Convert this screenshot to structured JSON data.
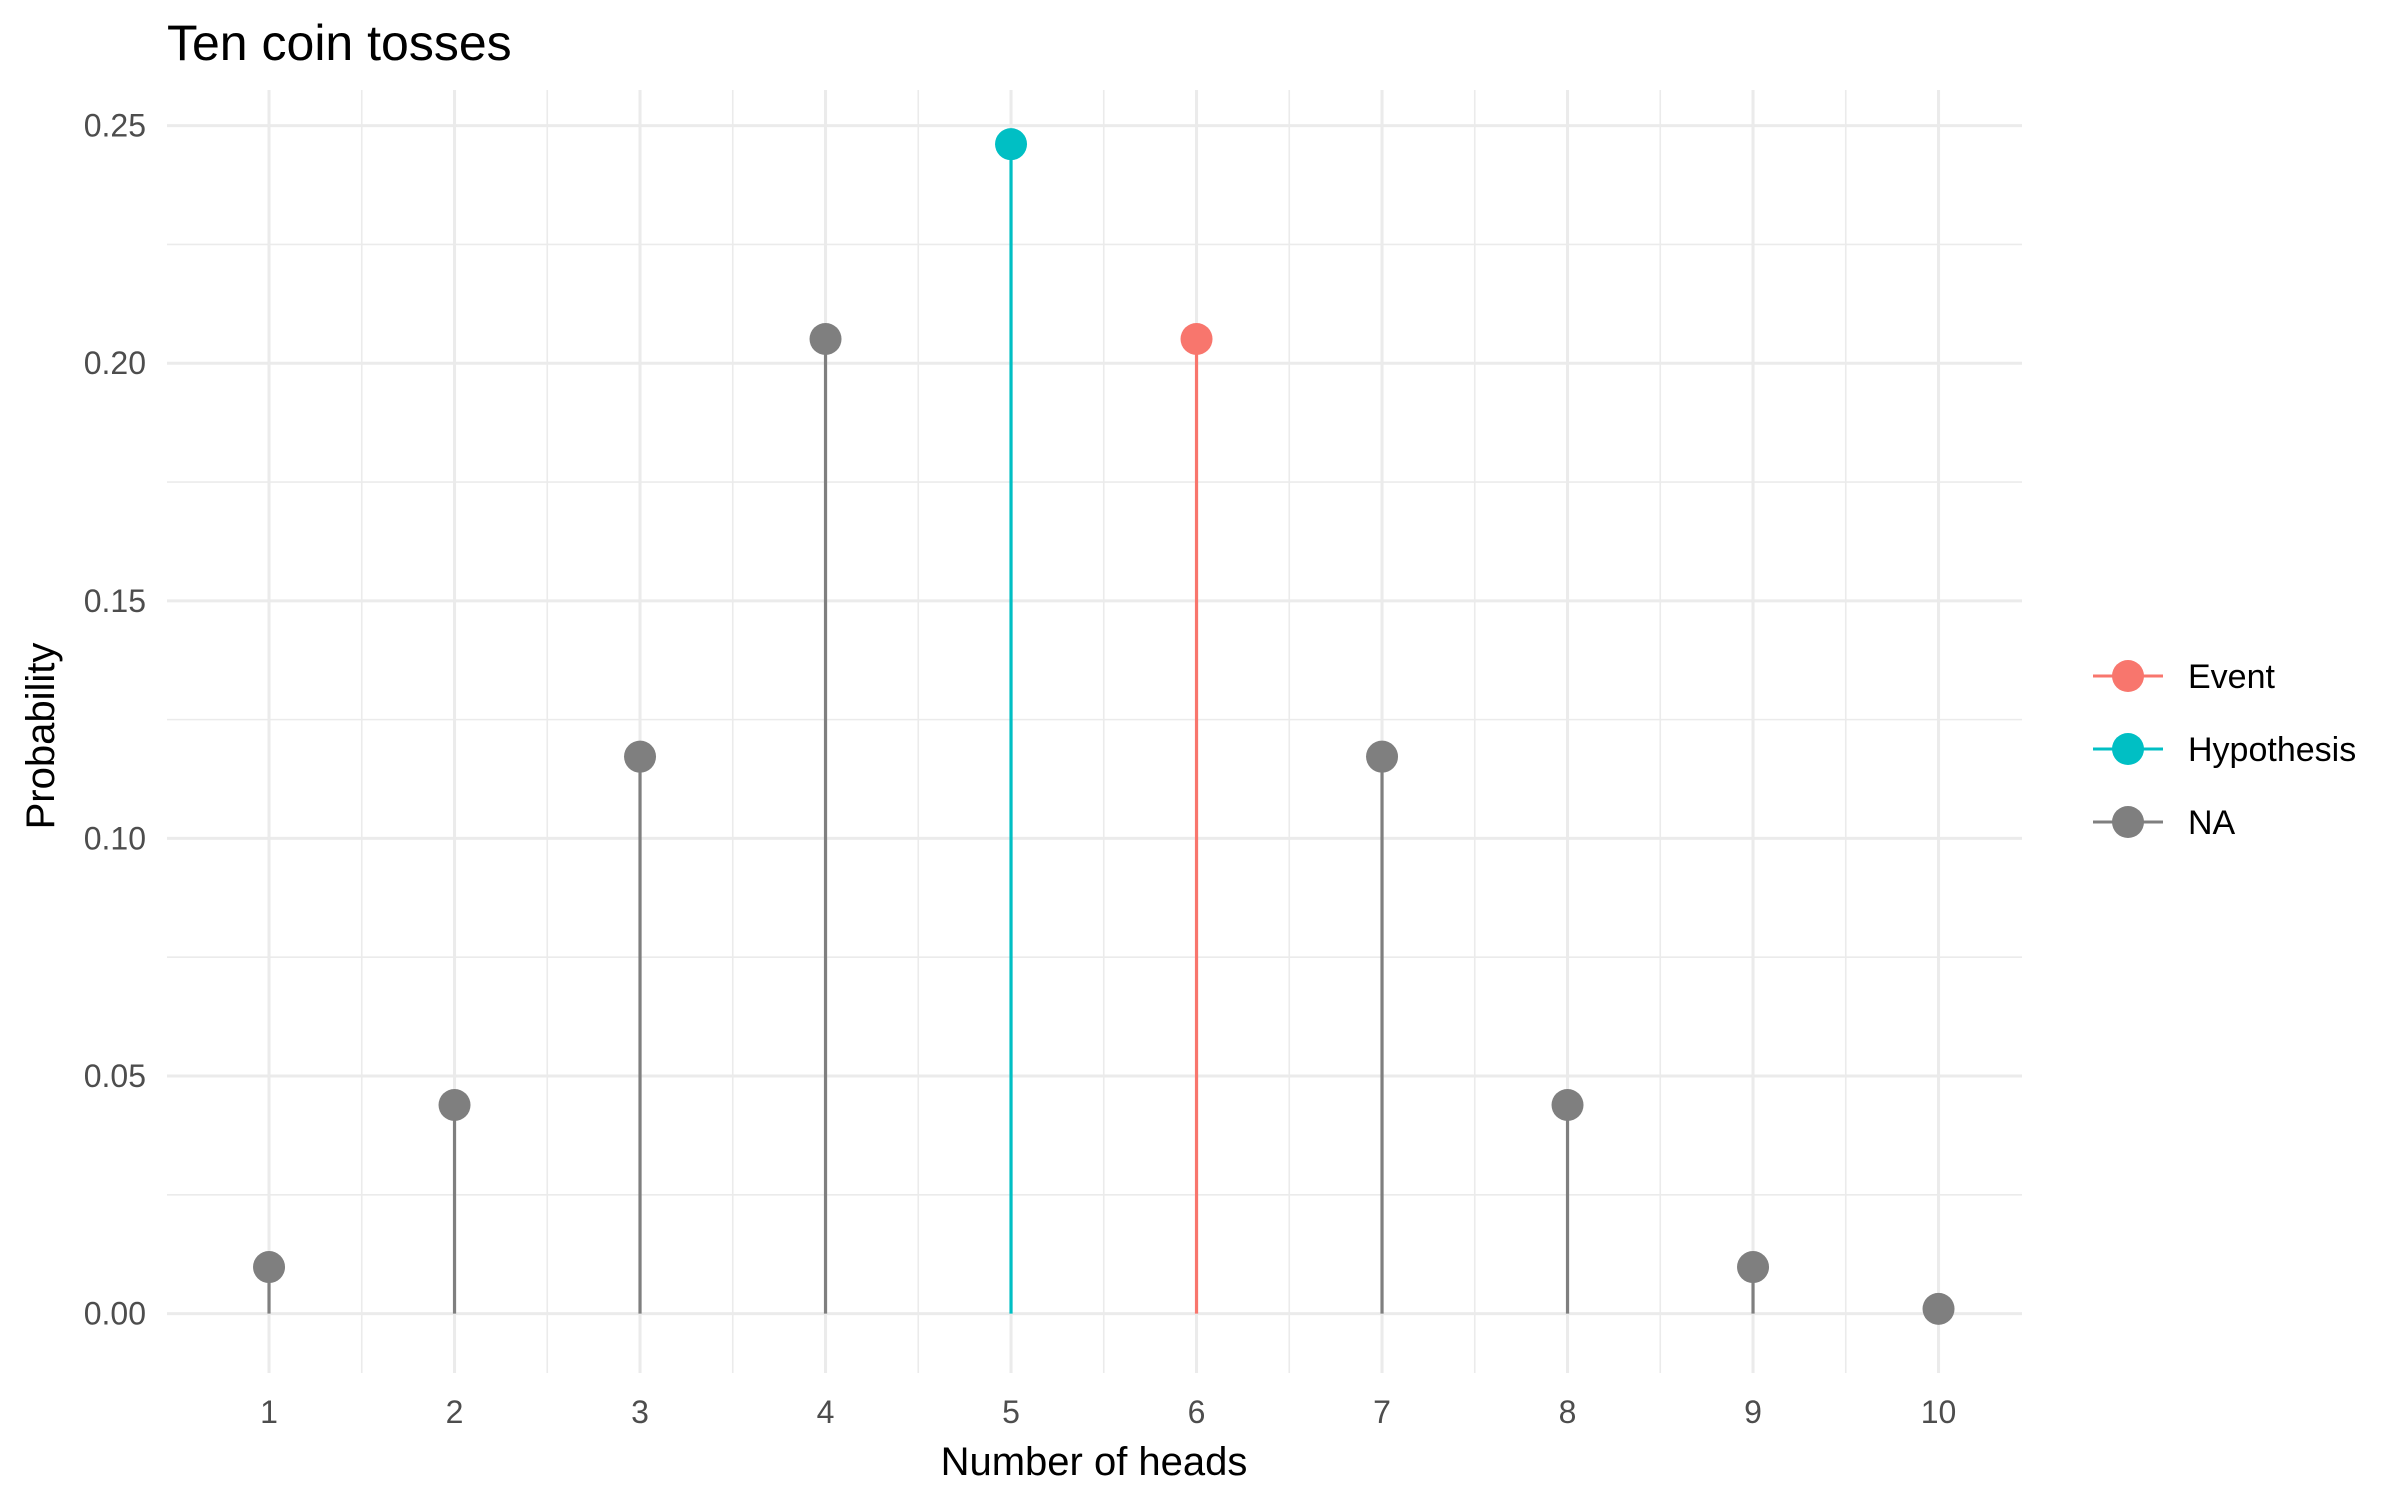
{
  "chart_data": {
    "type": "lollipop",
    "title": "Ten coin tosses",
    "xlabel": "Number of heads",
    "ylabel": "Probability",
    "xlim": [
      0.45,
      10.45
    ],
    "ylim": [
      -0.0125,
      0.2575
    ],
    "x_ticks": [
      "1",
      "2",
      "3",
      "4",
      "5",
      "6",
      "7",
      "8",
      "9",
      "10"
    ],
    "y_ticks": [
      {
        "value": 0.0,
        "label": "0.00"
      },
      {
        "value": 0.05,
        "label": "0.05"
      },
      {
        "value": 0.1,
        "label": "0.10"
      },
      {
        "value": 0.15,
        "label": "0.15"
      },
      {
        "value": 0.2,
        "label": "0.20"
      },
      {
        "value": 0.25,
        "label": "0.25"
      }
    ],
    "grid": true,
    "legend_position": "right",
    "legend": [
      {
        "name": "Event",
        "color": "#F8766D"
      },
      {
        "name": "Hypothesis",
        "color": "#00BFC4"
      },
      {
        "name": "NA",
        "color": "#7F7F7F"
      }
    ],
    "points": [
      {
        "x": 1,
        "y": 0.0098,
        "group": "NA"
      },
      {
        "x": 2,
        "y": 0.0439,
        "group": "NA"
      },
      {
        "x": 3,
        "y": 0.1172,
        "group": "NA"
      },
      {
        "x": 4,
        "y": 0.2051,
        "group": "NA"
      },
      {
        "x": 5,
        "y": 0.2461,
        "group": "Hypothesis"
      },
      {
        "x": 6,
        "y": 0.2051,
        "group": "Event"
      },
      {
        "x": 7,
        "y": 0.1172,
        "group": "NA"
      },
      {
        "x": 8,
        "y": 0.0439,
        "group": "NA"
      },
      {
        "x": 9,
        "y": 0.0098,
        "group": "NA"
      },
      {
        "x": 10,
        "y": 0.001,
        "group": "NA"
      }
    ]
  }
}
